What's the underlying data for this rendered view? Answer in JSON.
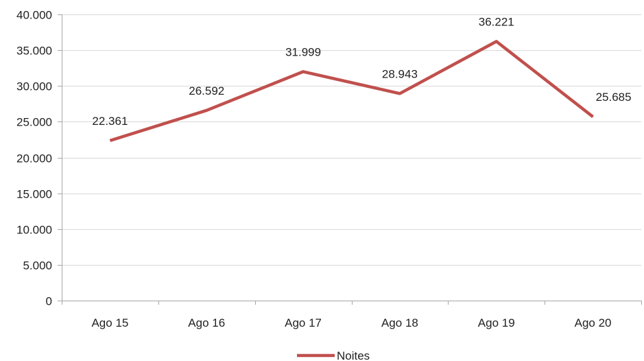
{
  "chart_data": {
    "type": "line",
    "title": "",
    "xlabel": "",
    "ylabel": "",
    "categories": [
      "Ago 15",
      "Ago 16",
      "Ago 17",
      "Ago 18",
      "Ago 19",
      "Ago 20"
    ],
    "series": [
      {
        "name": "Noites",
        "values": [
          22361,
          26592,
          31999,
          28943,
          36221,
          25685
        ],
        "data_labels": [
          "22.361",
          "26.592",
          "31.999",
          "28.943",
          "36.221",
          "25.685"
        ],
        "color": "#c0504d"
      }
    ],
    "ylim": [
      0,
      40000
    ],
    "yticks": [
      0,
      5000,
      10000,
      15000,
      20000,
      25000,
      30000,
      35000,
      40000
    ],
    "ytick_labels": [
      "0",
      "5.000",
      "10.000",
      "15.000",
      "20.000",
      "25.000",
      "30.000",
      "35.000",
      "40.000"
    ],
    "grid": true,
    "gridline_color": "#d9d9d9",
    "axis_color": "#a6a6a6",
    "legend_position": "bottom"
  }
}
